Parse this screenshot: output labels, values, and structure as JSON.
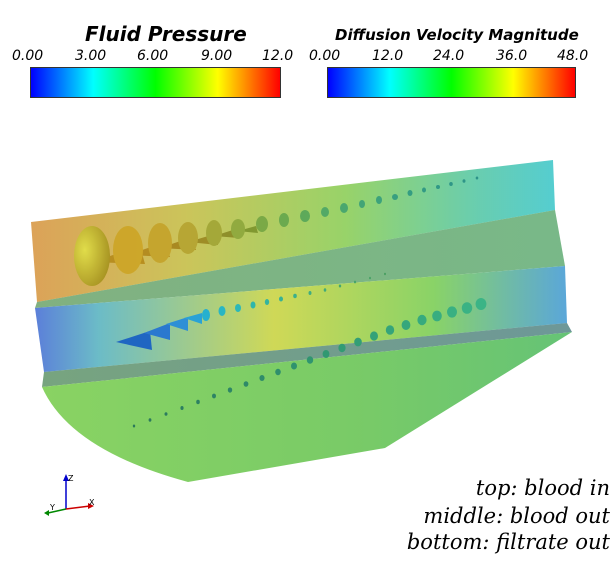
{
  "colorbars": {
    "pressure": {
      "title": "Fluid Pressure",
      "ticks": [
        "0.00",
        "3.00",
        "6.00",
        "9.00",
        "12.0"
      ],
      "range": [
        0,
        12
      ]
    },
    "velocity": {
      "title": "Diffusion Velocity Magnitude",
      "ticks": [
        "0.00",
        "12.0",
        "24.0",
        "36.0",
        "48.0"
      ],
      "range": [
        0,
        48
      ]
    },
    "colormap": [
      "#0000ff",
      "#00ffff",
      "#00ff00",
      "#ffff00",
      "#ff0000"
    ]
  },
  "axes": {
    "x": "X",
    "y": "Y",
    "z": "Z",
    "colors": {
      "x": "#cc0000",
      "y": "#008800",
      "z": "#0000cc"
    }
  },
  "legend": {
    "top": "top: blood in",
    "middle": "middle: blood out",
    "bottom": "bottom: filtrate out"
  }
}
